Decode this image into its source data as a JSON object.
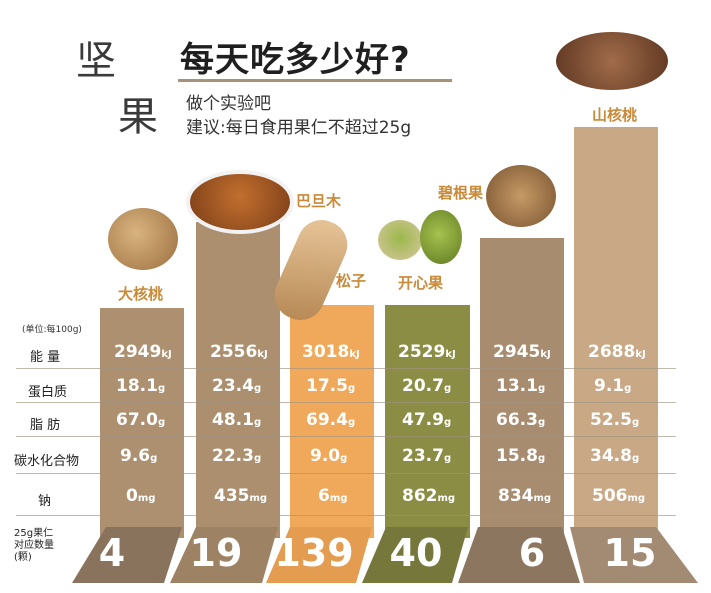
{
  "title": {
    "char1": "坚",
    "char2": "果",
    "headline": "每天吃多少好?"
  },
  "subtitle": {
    "line1": "做个实验吧",
    "line2": "建议:每日食用果仁不超过25g"
  },
  "unit_note": "(单位:每100g)",
  "row_labels": [
    "能 量",
    "蛋白质",
    "脂 肪",
    "碳水化合物",
    "钠"
  ],
  "count_label": [
    "25g果仁",
    "对应数量",
    "(颗)"
  ],
  "colors": {
    "brown": "#ad9070",
    "peach": "#dcae7c",
    "orange": "#f0a85a",
    "olive": "#8c8d44",
    "dark": "#8a6f58",
    "accent": "#c98a3a"
  },
  "nuts": [
    {
      "name": "大核桃",
      "energy": "2949",
      "energy_unit": "kJ",
      "protein": "18.1",
      "fat": "67.0",
      "carb": "9.6",
      "unit_g": "g",
      "sodium": "0",
      "sodium_unit": "mg",
      "count": "4"
    },
    {
      "name": "巴旦木",
      "energy": "2556",
      "energy_unit": "kJ",
      "protein": "23.4",
      "fat": "48.1",
      "carb": "22.3",
      "unit_g": "g",
      "sodium": "435",
      "sodium_unit": "mg",
      "count": "19"
    },
    {
      "name": "松子",
      "energy": "3018",
      "energy_unit": "kJ",
      "protein": "17.5",
      "fat": "69.4",
      "carb": "9.0",
      "unit_g": "g",
      "sodium": "6",
      "sodium_unit": "mg",
      "count": "139"
    },
    {
      "name": "开心果",
      "energy": "2529",
      "energy_unit": "kJ",
      "protein": "20.7",
      "fat": "47.9",
      "carb": "23.7",
      "unit_g": "g",
      "sodium": "862",
      "sodium_unit": "mg",
      "count": "40"
    },
    {
      "name": "碧根果",
      "energy": "2945",
      "energy_unit": "kJ",
      "protein": "13.1",
      "fat": "66.3",
      "carb": "15.8",
      "unit_g": "g",
      "sodium": "834",
      "sodium_unit": "mg",
      "count": "6"
    },
    {
      "name": "山核桃",
      "energy": "2688",
      "energy_unit": "kJ",
      "protein": "9.1",
      "fat": "52.5",
      "carb": "34.8",
      "unit_g": "g",
      "sodium": "506",
      "sodium_unit": "mg",
      "count": "15"
    }
  ]
}
